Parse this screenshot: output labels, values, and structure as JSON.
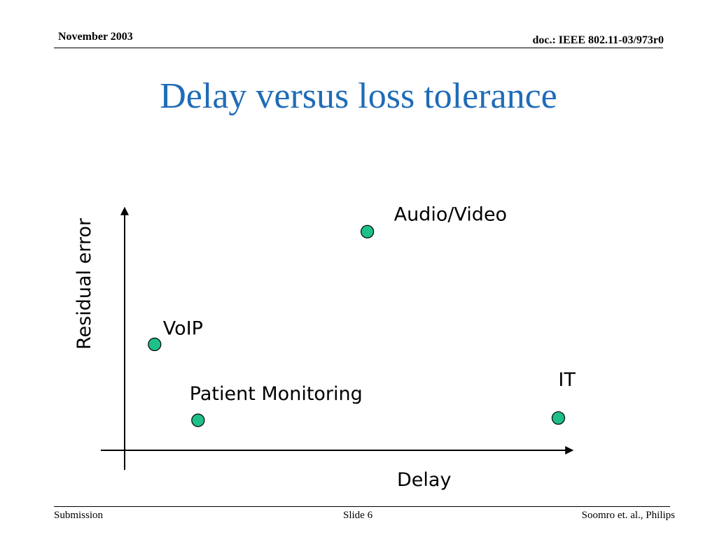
{
  "header": {
    "date": "November 2003",
    "doc": "doc.: IEEE 802.11-03/973r0"
  },
  "slide_title": "Delay versus loss tolerance",
  "footer": {
    "left": "Submission",
    "center": "Slide 6",
    "right": "Soomro et. al., Philips"
  },
  "chart_data": {
    "type": "scatter",
    "xlabel": "Delay",
    "ylabel": "Residual error",
    "xlim": [
      0,
      100
    ],
    "ylim": [
      0,
      100
    ],
    "ticks": "none",
    "grid": false,
    "marker_color": "#1fbf8a",
    "points": [
      {
        "label": "Audio/Video",
        "x": 53,
        "y": 92
      },
      {
        "label": "VoIP",
        "x": 4,
        "y": 43
      },
      {
        "label": "Patient Monitoring",
        "x": 14,
        "y": 10
      },
      {
        "label": "IT",
        "x": 97,
        "y": 11
      }
    ]
  }
}
